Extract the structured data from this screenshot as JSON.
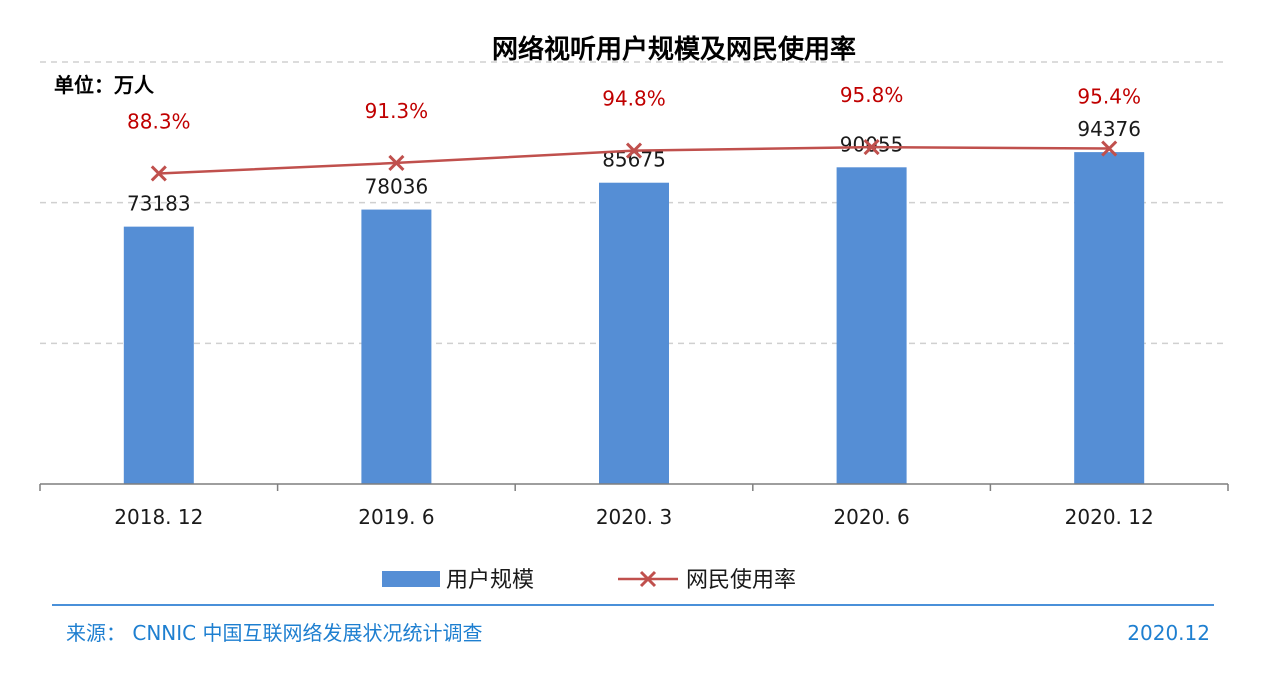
{
  "chart_data": {
    "type": "bar",
    "title": "网络视听用户规模及网民使用率",
    "unit_label": "单位：万人",
    "categories": [
      "2018. 12",
      "2019. 6",
      "2020. 3",
      "2020. 6",
      "2020. 12"
    ],
    "series": [
      {
        "name": "用户规模",
        "type": "bar",
        "axis": "left",
        "values": [
          73183,
          78036,
          85675,
          90055,
          94376
        ],
        "labels": [
          "73183",
          "78036",
          "85675",
          "90055",
          "94376"
        ],
        "color": "#558ED5"
      },
      {
        "name": "网民使用率",
        "type": "line",
        "axis": "right",
        "marker": "x",
        "values": [
          88.3,
          91.3,
          94.8,
          95.8,
          95.4
        ],
        "labels": [
          "88.3%",
          "91.3%",
          "94.8%",
          "95.8%",
          "95.4%"
        ],
        "color": "#C0504D"
      }
    ],
    "ylim_left": [
      0,
      120000
    ],
    "ylim_right": [
      0,
      120
    ],
    "grid": "dashed horizontal",
    "legend_position": "bottom"
  },
  "footer": {
    "source": "来源： CNNIC 中国互联网络发展状况统计调查",
    "date": "2020.12"
  }
}
